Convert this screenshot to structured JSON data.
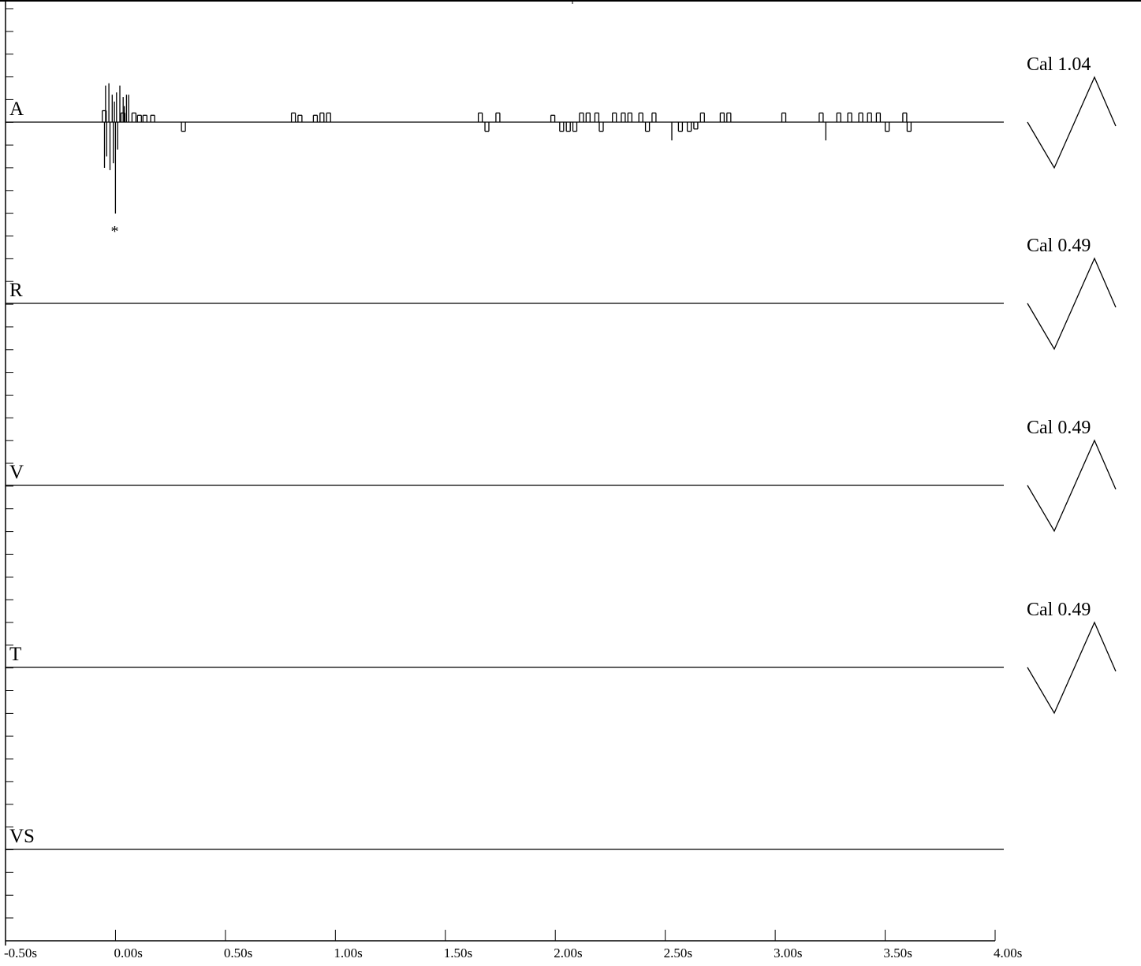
{
  "chart_data": {
    "type": "line",
    "xlabel": "",
    "ylabel": "",
    "xlim": [
      -0.5,
      4.0
    ],
    "x_ticks": [
      "-0.50s",
      "0.00s",
      "0.50s",
      "1.00s",
      "1.50s",
      "2.00s",
      "2.50s",
      "3.00s",
      "3.50s",
      "4.00s"
    ],
    "x_tick_values": [
      -0.5,
      0.0,
      0.5,
      1.0,
      1.5,
      2.0,
      2.5,
      3.0,
      3.5,
      4.0
    ],
    "grid": false,
    "channels": [
      {
        "label": "A",
        "calibration": "Cal 1.04",
        "marker": "*",
        "marker_time": 0.0,
        "events": [
          [
            -0.06,
            0.5
          ],
          [
            -0.05,
            -2.0
          ],
          [
            -0.045,
            1.6
          ],
          [
            -0.04,
            -1.5
          ],
          [
            -0.03,
            1.7
          ],
          [
            -0.025,
            -2.1
          ],
          [
            -0.015,
            1.2
          ],
          [
            -0.01,
            -1.8
          ],
          [
            -0.005,
            0.9
          ],
          [
            0.0,
            -4.0
          ],
          [
            0.005,
            1.3
          ],
          [
            0.01,
            -1.2
          ],
          [
            0.02,
            1.6
          ],
          [
            0.025,
            0.4
          ],
          [
            0.035,
            1.1
          ],
          [
            0.04,
            0.7
          ],
          [
            0.05,
            1.2
          ],
          [
            0.06,
            1.2
          ],
          [
            0.075,
            0.4
          ],
          [
            0.1,
            0.3
          ],
          [
            0.125,
            0.3
          ],
          [
            0.16,
            0.3
          ],
          [
            0.3,
            -0.4
          ],
          [
            0.8,
            0.4
          ],
          [
            0.83,
            0.3
          ],
          [
            0.9,
            0.3
          ],
          [
            0.93,
            0.4
          ],
          [
            0.96,
            0.4
          ],
          [
            1.65,
            0.4
          ],
          [
            1.68,
            -0.4
          ],
          [
            1.73,
            0.4
          ],
          [
            1.98,
            0.3
          ],
          [
            2.02,
            -0.4
          ],
          [
            2.05,
            -0.4
          ],
          [
            2.08,
            -0.4
          ],
          [
            2.11,
            0.4
          ],
          [
            2.14,
            0.4
          ],
          [
            2.18,
            0.4
          ],
          [
            2.2,
            -0.4
          ],
          [
            2.26,
            0.4
          ],
          [
            2.3,
            0.4
          ],
          [
            2.33,
            0.4
          ],
          [
            2.38,
            0.4
          ],
          [
            2.41,
            -0.4
          ],
          [
            2.44,
            0.4
          ],
          [
            2.53,
            -0.8
          ],
          [
            2.56,
            -0.4
          ],
          [
            2.6,
            -0.4
          ],
          [
            2.63,
            -0.3
          ],
          [
            2.66,
            0.4
          ],
          [
            2.75,
            0.4
          ],
          [
            2.78,
            0.4
          ],
          [
            3.03,
            0.4
          ],
          [
            3.2,
            0.4
          ],
          [
            3.23,
            -0.8
          ],
          [
            3.28,
            0.4
          ],
          [
            3.33,
            0.4
          ],
          [
            3.38,
            0.4
          ],
          [
            3.42,
            0.4
          ],
          [
            3.46,
            0.4
          ],
          [
            3.5,
            -0.4
          ],
          [
            3.58,
            0.4
          ],
          [
            3.6,
            -0.4
          ]
        ]
      },
      {
        "label": "R",
        "calibration": "Cal 0.49",
        "events": []
      },
      {
        "label": "V",
        "calibration": "Cal 0.49",
        "events": []
      },
      {
        "label": "T",
        "calibration": "Cal 0.49",
        "events": []
      },
      {
        "label": "VS",
        "calibration": "",
        "events": []
      }
    ]
  }
}
